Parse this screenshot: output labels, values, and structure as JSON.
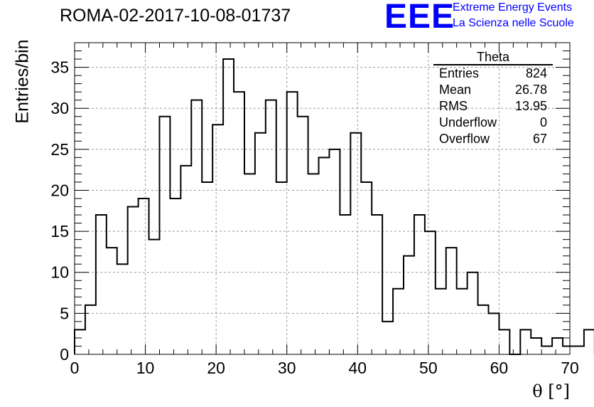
{
  "chart_data": {
    "type": "histogram",
    "title": "ROMA-02-2017-10-08-01737",
    "xlabel": "θ [°]",
    "ylabel": "Entries/bin",
    "xlim": [
      0,
      70
    ],
    "ylim": [
      0,
      38
    ],
    "bin_width": 1.5,
    "bin_start": 0,
    "values": [
      3,
      6,
      17,
      13,
      11,
      18,
      19,
      14,
      29,
      19,
      23,
      31,
      21,
      28,
      36,
      32,
      22,
      27,
      31,
      21,
      32,
      29,
      22,
      24,
      25,
      17,
      27,
      21,
      17,
      4,
      8,
      12,
      17,
      15,
      8,
      13,
      8,
      10,
      6,
      5,
      3,
      0,
      3,
      2,
      1,
      2,
      1,
      1,
      3
    ],
    "x_ticks": [
      "0",
      "10",
      "20",
      "30",
      "40",
      "50",
      "60",
      "70"
    ],
    "y_ticks": [
      "0",
      "5",
      "10",
      "15",
      "20",
      "25",
      "30",
      "35"
    ],
    "grid": true,
    "legend": "none"
  },
  "stats_box": {
    "title": "Theta",
    "rows": [
      {
        "label": "Entries",
        "value": "824"
      },
      {
        "label": "Mean",
        "value": "26.78"
      },
      {
        "label": "RMS",
        "value": "13.95"
      },
      {
        "label": "Underflow",
        "value": "0"
      },
      {
        "label": "Overflow",
        "value": "67"
      }
    ]
  },
  "logo": {
    "mark": "EEE",
    "line1": "Extreme Energy Events",
    "line2": "La Scienza nelle Scuole",
    "color": "#0000ff"
  }
}
